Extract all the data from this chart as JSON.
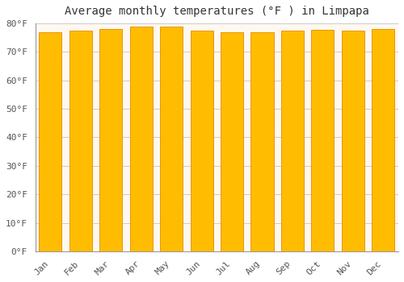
{
  "title": "Average monthly temperatures (°F ) in Limpapa",
  "months": [
    "Jan",
    "Feb",
    "Mar",
    "Apr",
    "May",
    "Jun",
    "Jul",
    "Aug",
    "Sep",
    "Oct",
    "Nov",
    "Dec"
  ],
  "values": [
    77.0,
    77.5,
    78.0,
    78.8,
    79.0,
    77.5,
    76.8,
    77.0,
    77.5,
    77.8,
    77.5,
    78.0
  ],
  "bar_color": "#FFBC00",
  "bar_edge_color": "#E8960A",
  "background_color": "#FFFFFF",
  "plot_bg_color": "#FFF8F0",
  "grid_color": "#CCCCCC",
  "ylim": [
    0,
    80
  ],
  "yticks": [
    0,
    10,
    20,
    30,
    40,
    50,
    60,
    70,
    80
  ],
  "ytick_labels": [
    "0°F",
    "10°F",
    "20°F",
    "30°F",
    "40°F",
    "50°F",
    "60°F",
    "70°F",
    "80°F"
  ],
  "title_fontsize": 10,
  "tick_fontsize": 8,
  "font_family": "monospace",
  "bar_width": 0.75
}
